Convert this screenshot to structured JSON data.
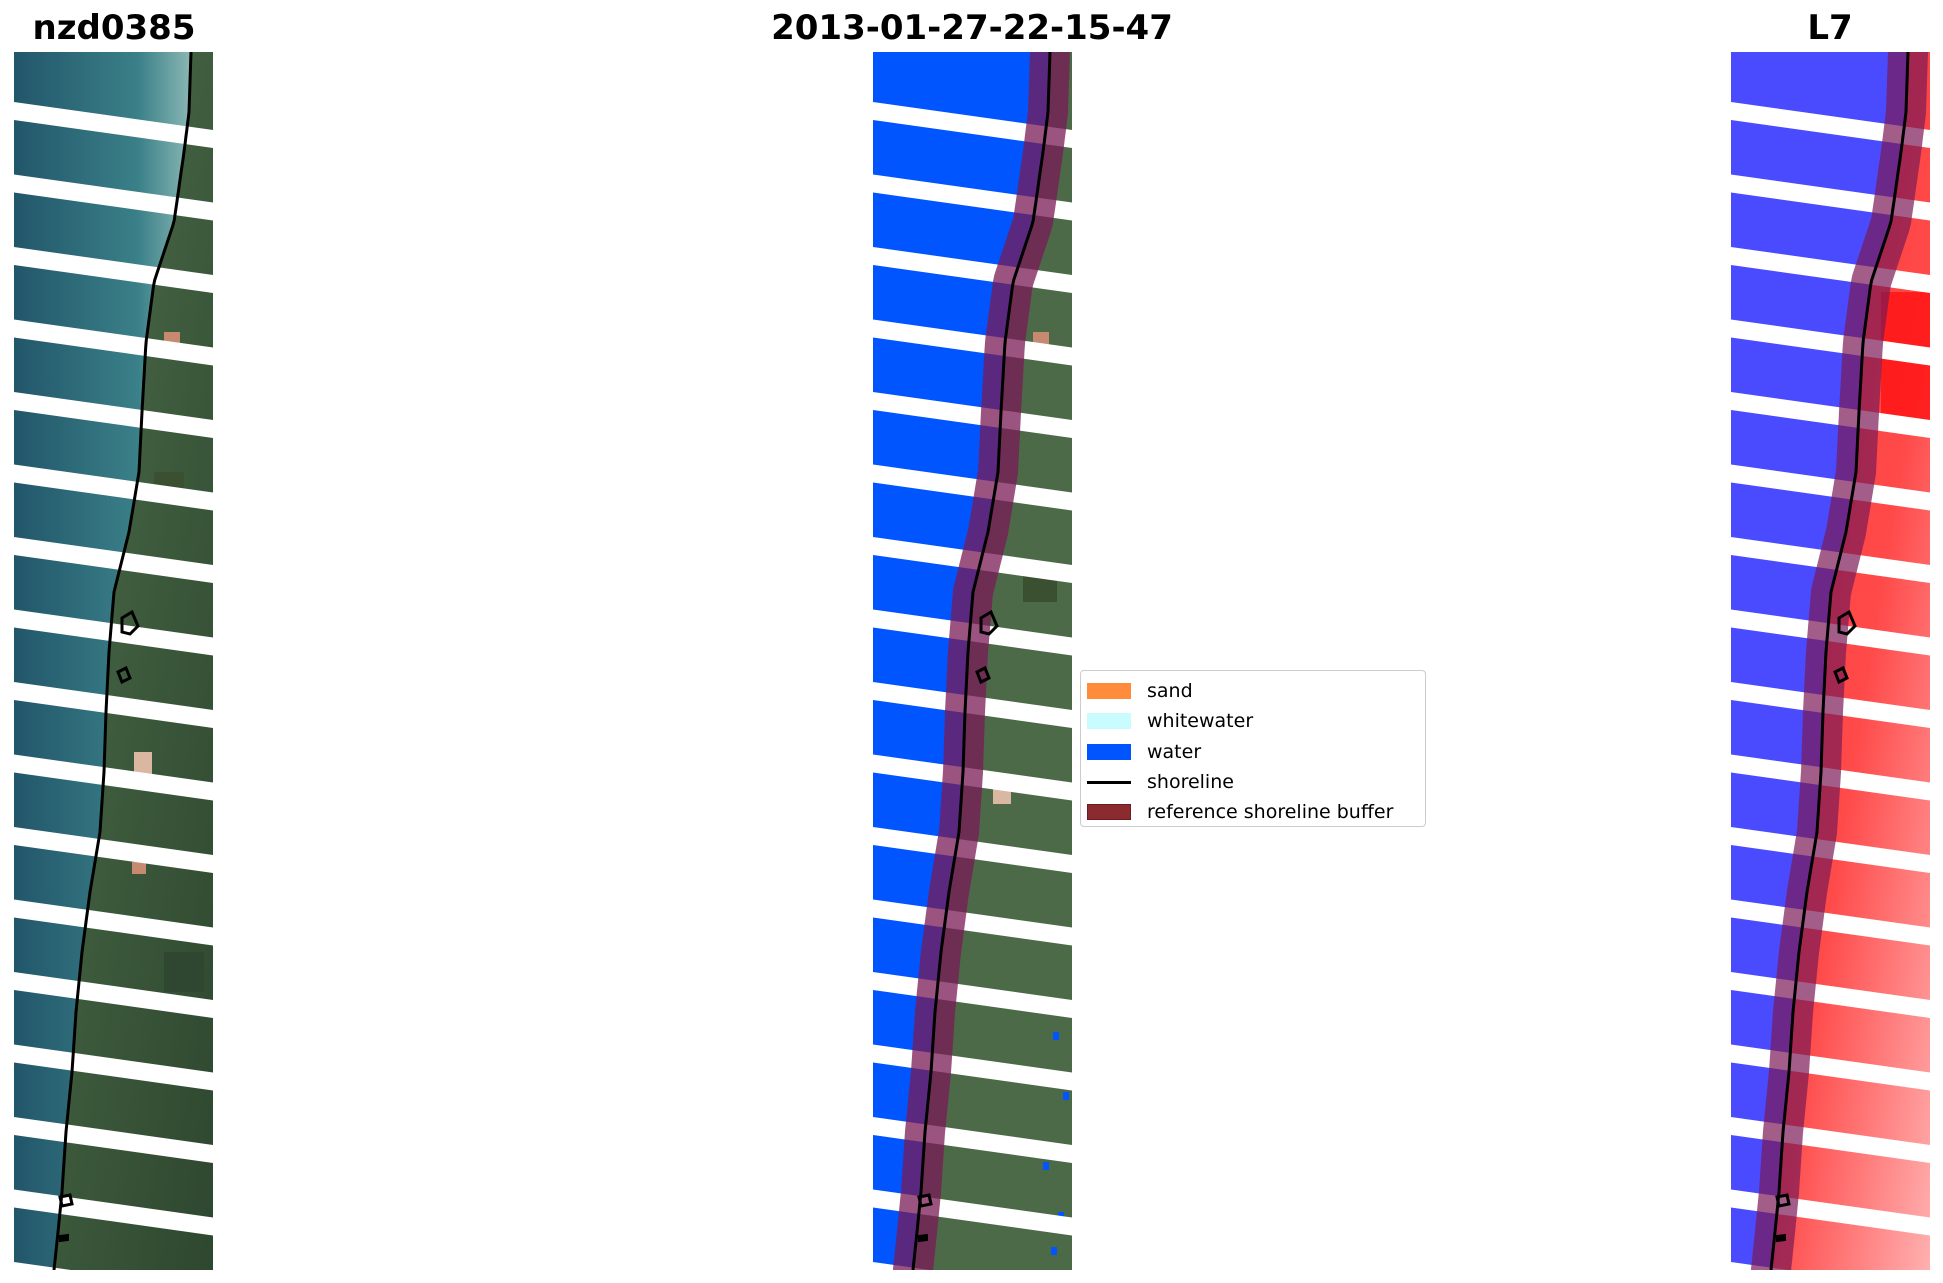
{
  "titles": {
    "left": "nzd0385",
    "center": "2013-01-27-22-15-47",
    "right": "L7"
  },
  "panels": [
    {
      "name": "rgb-image-panel",
      "style": "rgb"
    },
    {
      "name": "classified-image-panel",
      "style": "classified"
    },
    {
      "name": "mndwi-image-panel",
      "style": "mndwi"
    }
  ],
  "legend": {
    "items": [
      {
        "label": "sand",
        "color": "#ff8c3a",
        "kind": "patch"
      },
      {
        "label": "whitewater",
        "color": "#c8fcff",
        "kind": "patch"
      },
      {
        "label": "water",
        "color": "#0055ff",
        "kind": "patch"
      },
      {
        "label": "shoreline",
        "color": "#000000",
        "kind": "line"
      },
      {
        "label": "reference shoreline buffer",
        "color": "#8b2a2f",
        "kind": "patch"
      }
    ]
  },
  "colors": {
    "sea": "#2f6f7c",
    "land": "#4f6d4a",
    "water_class": "#0055ff",
    "buffer": "#7a1a4a",
    "mndwi_water": "#4040ff",
    "mndwi_land": "#ff2a2a"
  }
}
